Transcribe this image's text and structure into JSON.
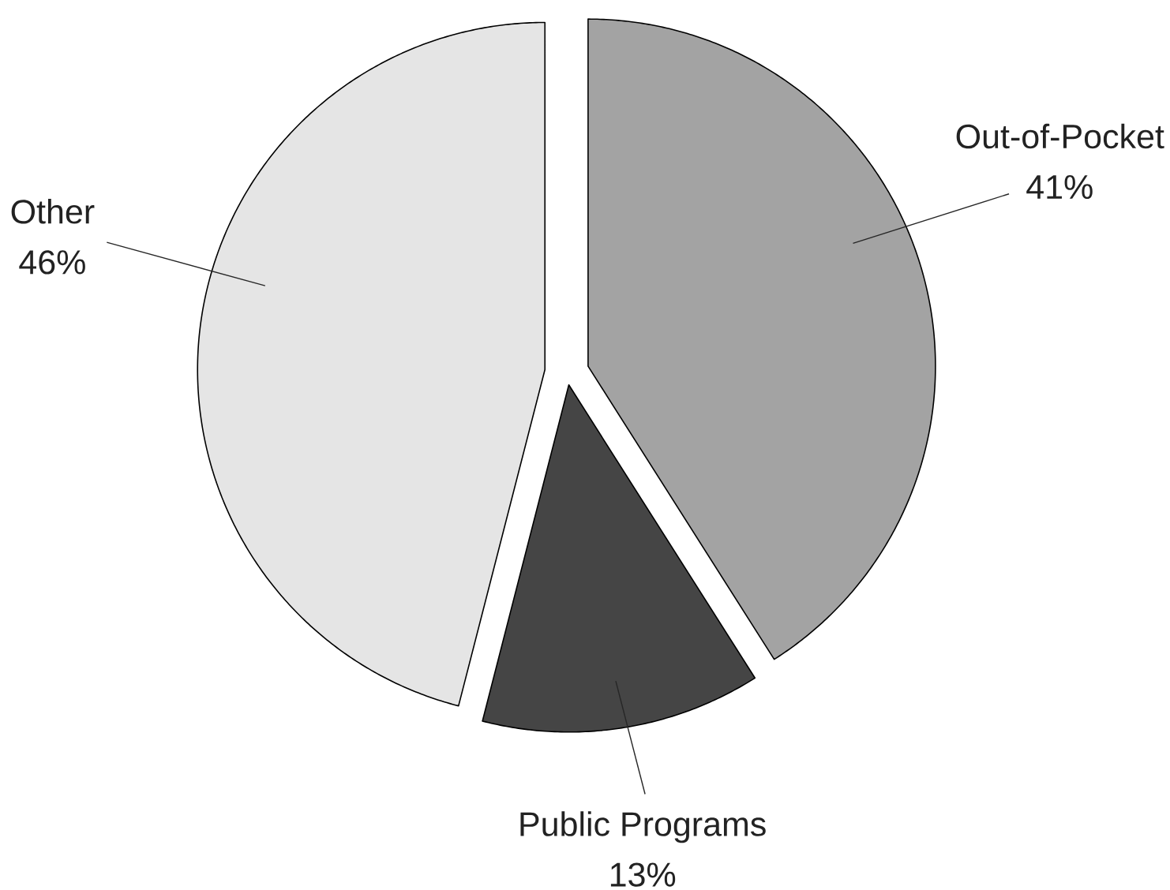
{
  "chart_data": {
    "type": "pie",
    "categories": [
      "Out-of-Pocket",
      "Public Programs",
      "Other"
    ],
    "values": [
      41,
      13,
      46
    ],
    "colors": [
      "#a3a3a3",
      "#454545",
      "#e5e5e5"
    ],
    "value_labels": [
      "41%",
      "13%",
      "46%"
    ]
  }
}
